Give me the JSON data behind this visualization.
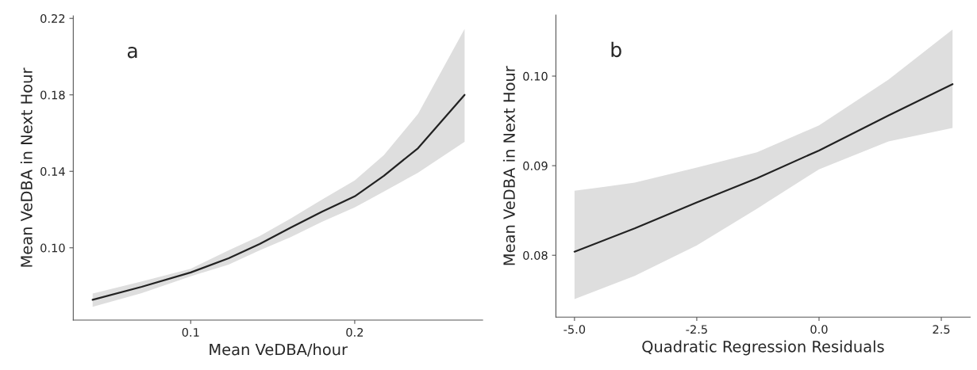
{
  "chart_data": [
    {
      "type": "line",
      "xlabel": "Mean VeDBA/hour",
      "ylabel": "Mean VeDBA in Next Hour",
      "annotations": [
        "a"
      ],
      "x": [
        0.0402,
        0.0701,
        0.1,
        0.1231,
        0.142,
        0.161,
        0.18,
        0.2,
        0.2178,
        0.2386,
        0.267
      ],
      "series": [
        {
          "color": "#222222",
          "values": [
            0.0728,
            0.0796,
            0.0871,
            0.0945,
            0.102,
            0.1106,
            0.1189,
            0.1269,
            0.1377,
            0.1521,
            0.18
          ],
          "lower": [
            0.0691,
            0.0763,
            0.0851,
            0.0912,
            0.0987,
            0.1056,
            0.1136,
            0.1211,
            0.1294,
            0.1393,
            0.1554
          ],
          "upper": [
            0.0761,
            0.0824,
            0.089,
            0.0987,
            0.1061,
            0.1153,
            0.1252,
            0.1352,
            0.1485,
            0.17,
            0.2145
          ]
        }
      ],
      "xlim": [
        0.0284,
        0.278
      ],
      "xticks": [
        0.1,
        0.2
      ],
      "ylim": [
        0.0622,
        0.2213
      ],
      "yticks": [
        {
          "value": 0.1,
          "label": "0.10"
        },
        0.14,
        0.18,
        0.22
      ],
      "grid": false,
      "marker": "none",
      "line_style": "solid"
    },
    {
      "type": "line",
      "xlabel": "Quadratic Regression Residuals",
      "ylabel": "Mean VeDBA in Next Hour",
      "annotations": [
        "b"
      ],
      "x": [
        -5.0,
        -3.77,
        -2.5,
        -1.27,
        0.0,
        1.42,
        2.73
      ],
      "series": [
        {
          "color": "#222222",
          "values": [
            0.0804,
            0.083,
            0.0859,
            0.0886,
            0.0917,
            0.0956,
            0.0991
          ],
          "lower": [
            0.0751,
            0.0777,
            0.0811,
            0.0852,
            0.0896,
            0.0927,
            0.0942
          ],
          "upper": [
            0.0872,
            0.0881,
            0.0898,
            0.0915,
            0.0945,
            0.0996,
            0.1052
          ]
        }
      ],
      "xlim": [
        -5.38,
        3.09
      ],
      "xticks": [
        {
          "value": -5,
          "label": "-5.0"
        },
        -2.5,
        {
          "value": 0,
          "label": "0.0"
        },
        2.5
      ],
      "ylim": [
        0.0731,
        0.1068
      ],
      "yticks": [
        0.08,
        0.09,
        {
          "value": 0.1,
          "label": "0.10"
        }
      ],
      "grid": false,
      "marker": "none",
      "line_style": "solid"
    }
  ]
}
